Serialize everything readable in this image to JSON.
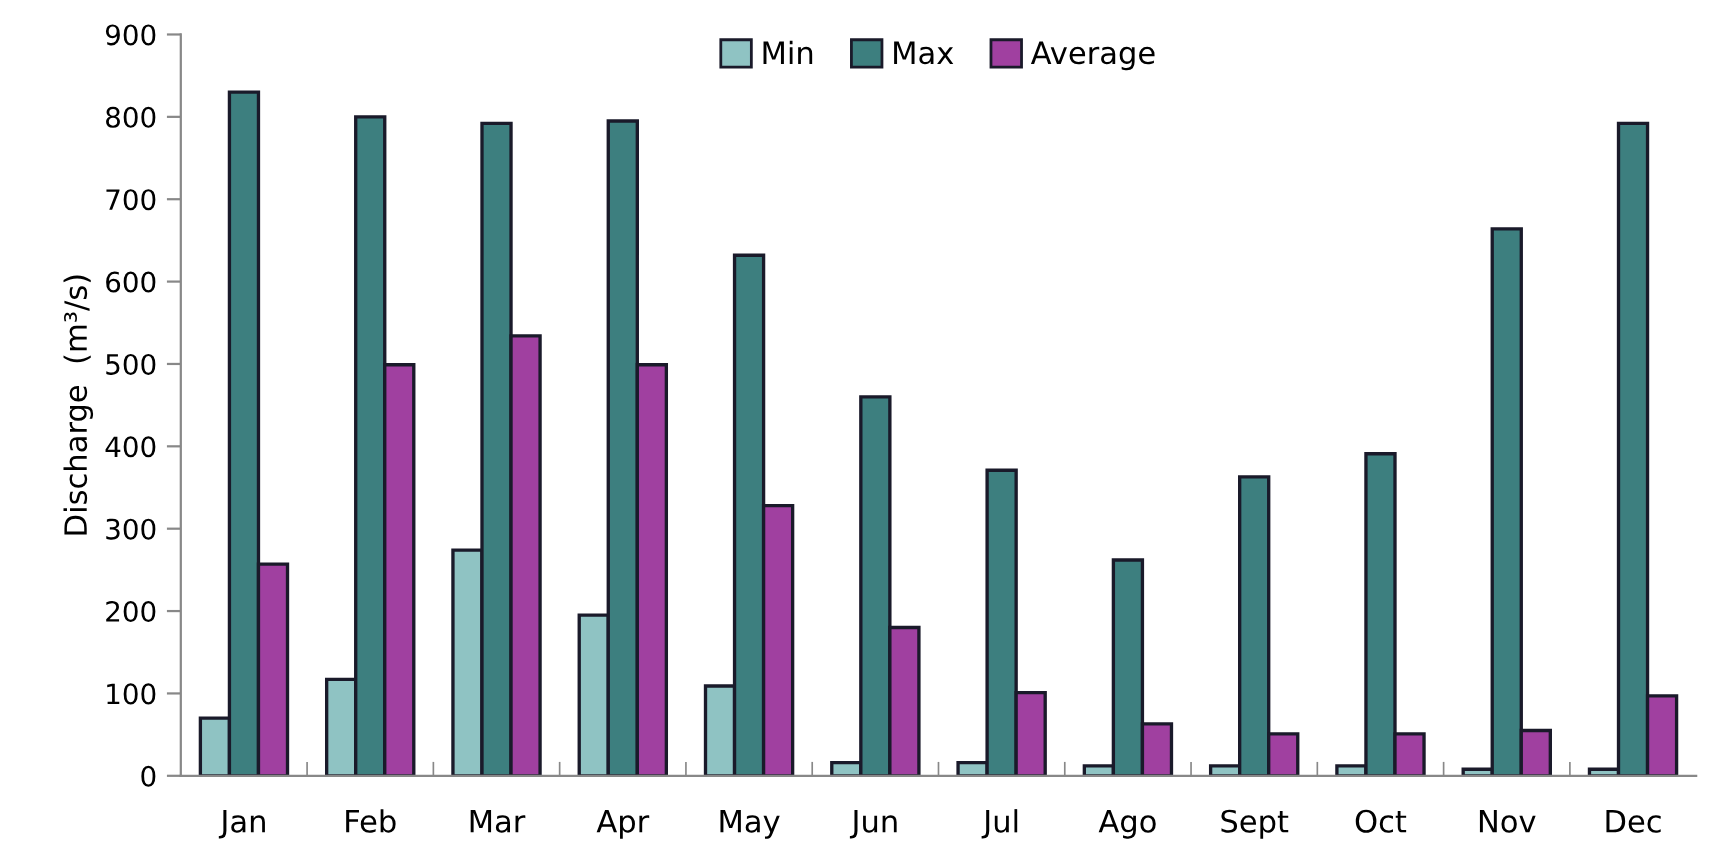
{
  "chart_data": {
    "type": "bar",
    "ylabel": "Discharge  (m³/s)",
    "categories": [
      "Jan",
      "Feb",
      "Mar",
      "Apr",
      "May",
      "Jun",
      "Jul",
      "Ago",
      "Sept",
      "Oct",
      "Nov",
      "Dec"
    ],
    "series": [
      {
        "name": "Min",
        "color": "#8fc3c3",
        "values": [
          70,
          117,
          274,
          195,
          109,
          16,
          16,
          12,
          12,
          12,
          8,
          8
        ]
      },
      {
        "name": "Max",
        "color": "#3d7f7f",
        "values": [
          830,
          800,
          792,
          795,
          632,
          460,
          371,
          262,
          363,
          391,
          664,
          792
        ]
      },
      {
        "name": "Average",
        "color": "#a040a0",
        "values": [
          257,
          499,
          534,
          499,
          328,
          180,
          101,
          63,
          51,
          51,
          55,
          97
        ]
      }
    ],
    "ylim": [
      0,
      900
    ],
    "yticks": [
      0,
      100,
      200,
      300,
      400,
      500,
      600,
      700,
      800,
      900
    ],
    "grid": false,
    "legend": "top"
  }
}
